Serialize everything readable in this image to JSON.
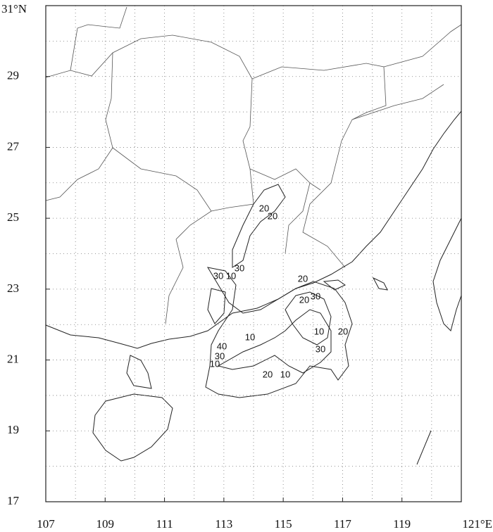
{
  "map": {
    "xlim": [
      107,
      121
    ],
    "ylim": [
      17,
      31
    ],
    "xticks": [
      107,
      109,
      111,
      113,
      115,
      117,
      119,
      {
        "value": 121,
        "label": "121°E"
      }
    ],
    "yticks": [
      17,
      19,
      21,
      23,
      25,
      27,
      29,
      {
        "value": 31,
        "label": "31°N"
      }
    ],
    "grid": true,
    "contour_labels": [
      20,
      20,
      30,
      30,
      10,
      20,
      20,
      30,
      10,
      40,
      30,
      10,
      10,
      20,
      30,
      20,
      10
    ]
  }
}
